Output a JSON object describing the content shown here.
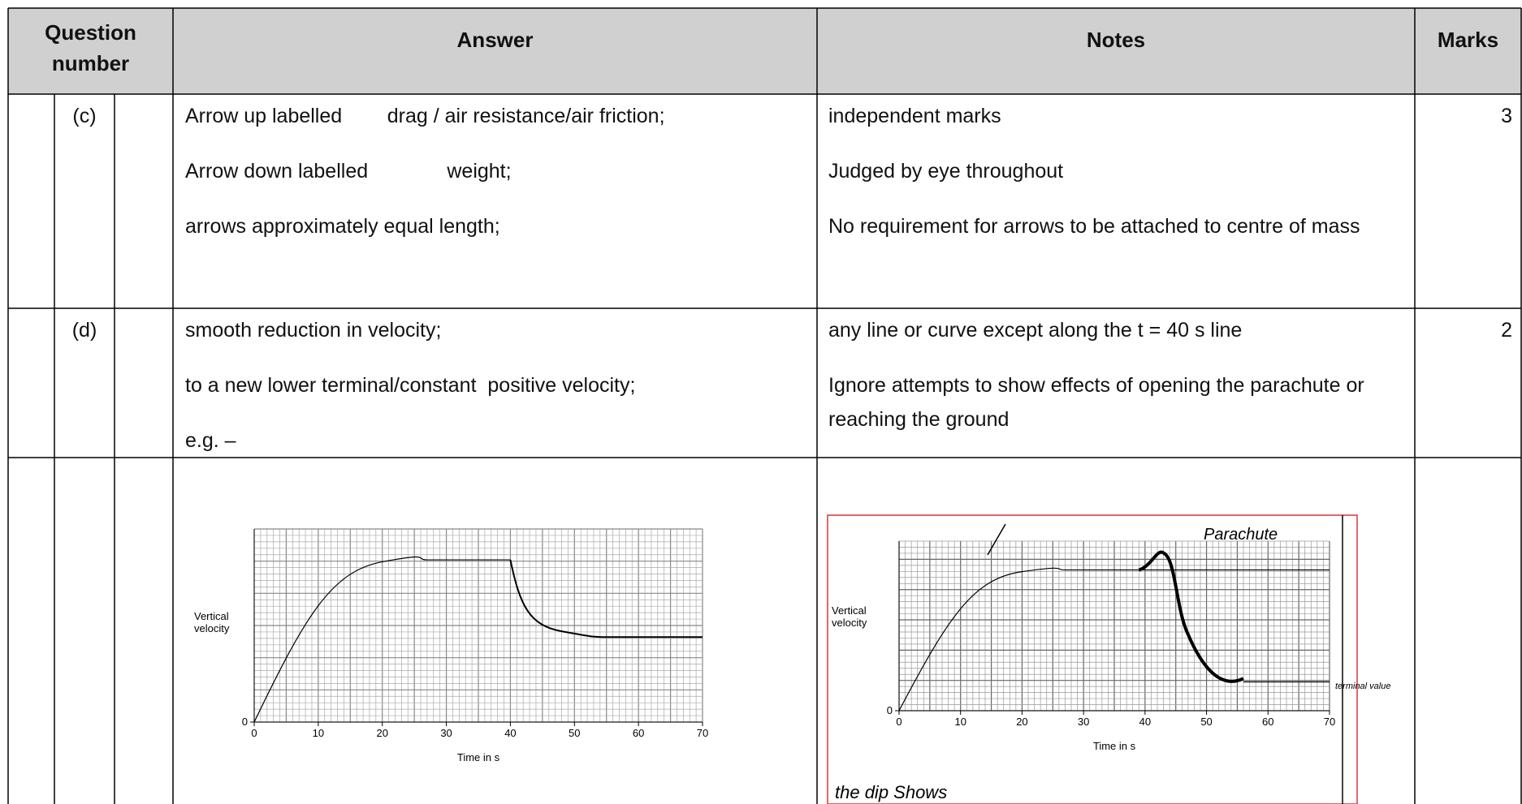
{
  "table": {
    "header": [
      "Question number",
      "Answer",
      "Notes",
      "Marks"
    ],
    "rows": [
      {
        "part": "(c)",
        "answer": [
          "Arrow up labelled        drag / air resistance/air friction;",
          "Arrow down labelled              weight;",
          "arrows approximately equal length;"
        ],
        "notes": [
          "independent marks",
          "Judged by eye throughout",
          "No requirement for arrows to be attached to centre of mass"
        ],
        "marks": 3
      },
      {
        "part": "(d)",
        "answer": [
          "smooth reduction in velocity;",
          "to a new lower terminal/constant  positive velocity;",
          "e.g. –"
        ],
        "notes": [
          "any line or curve except along the t = 40 s line",
          "Ignore attempts to show effects of opening the parachute or reaching the ground"
        ],
        "marks": 2
      }
    ]
  },
  "graphs": [
    {
      "ylabel": "Vertical velocity",
      "xlabel": "Time in s",
      "xticks": [
        0,
        10,
        20,
        30,
        40,
        50,
        60,
        70
      ],
      "yticks": [
        0
      ]
    },
    {
      "ylabel": "Vertical velocity",
      "xlabel": "Time in s",
      "xticks": [
        0,
        10,
        20,
        30,
        40,
        50,
        60,
        70
      ],
      "yticks": [
        0
      ],
      "handwriting": [
        "Parachute",
        "terminal value",
        "the dip Shows"
      ]
    }
  ]
}
